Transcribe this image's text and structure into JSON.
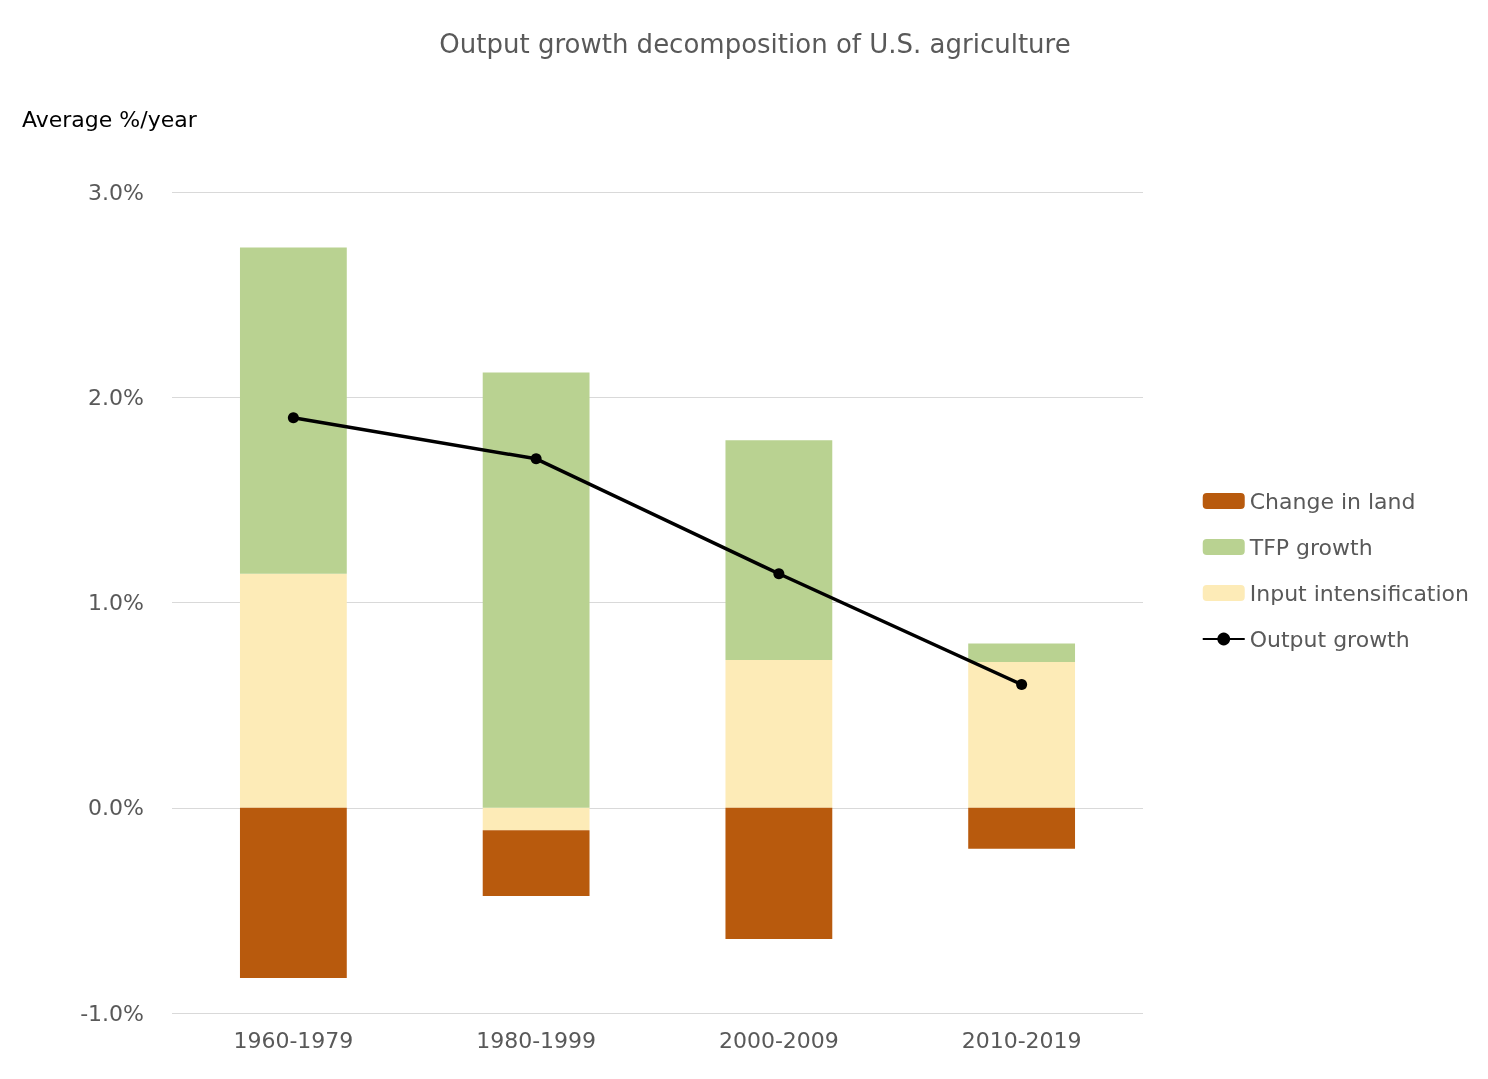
{
  "chart_data": {
    "type": "bar",
    "title": "Output growth decomposition of U.S. agriculture",
    "ylabel": "Average %/year",
    "categories": [
      "1960-1979",
      "1980-1999",
      "2000-2009",
      "2010-2019"
    ],
    "stacked": true,
    "series": [
      {
        "name": "Input intensification",
        "color": "#fdebb7",
        "values": [
          1.14,
          -0.11,
          0.72,
          0.71
        ]
      },
      {
        "name": "TFP growth",
        "color": "#b9d291",
        "values": [
          1.59,
          2.12,
          1.07,
          0.09
        ]
      },
      {
        "name": "Change in land",
        "color": "#b85a0d",
        "values": [
          -0.83,
          -0.32,
          -0.64,
          -0.2
        ]
      },
      {
        "name": "Output growth",
        "color": "#000000",
        "type": "line",
        "marker": "circle",
        "values": [
          1.9,
          1.7,
          1.14,
          0.6
        ]
      }
    ],
    "ylim": [
      -1,
      3
    ],
    "yticks": [
      {
        "value": -1,
        "label": "-1.0%"
      },
      {
        "value": 0,
        "label": "0.0%"
      },
      {
        "value": 1,
        "label": "1.0%"
      },
      {
        "value": 2,
        "label": "2.0%"
      },
      {
        "value": 3,
        "label": "3.0%"
      }
    ],
    "grid": "y",
    "legend": "right"
  }
}
